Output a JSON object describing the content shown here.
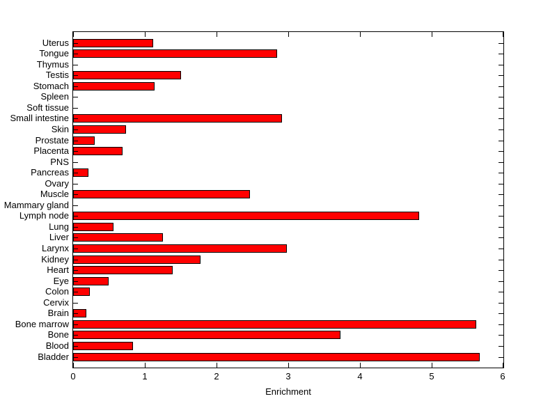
{
  "chart_data": {
    "type": "bar",
    "orientation": "horizontal",
    "title": "",
    "xlabel": "Enrichment",
    "ylabel": "",
    "xlim": [
      0,
      6
    ],
    "xticks": [
      0,
      1,
      2,
      3,
      4,
      5,
      6
    ],
    "grid": false,
    "legend": null,
    "bar_color": "#FF0000",
    "bar_edge_color": "#000000",
    "axis_color": "#000000",
    "background_color": "#FFFFFF",
    "categories": [
      "Uterus",
      "Tongue",
      "Thymus",
      "Testis",
      "Stomach",
      "Spleen",
      "Soft tissue",
      "Small intestine",
      "Skin",
      "Prostate",
      "Placenta",
      "PNS",
      "Pancreas",
      "Ovary",
      "Muscle",
      "Mammary gland",
      "Lymph node",
      "Lung",
      "Liver",
      "Larynx",
      "Kidney",
      "Heart",
      "Eye",
      "Colon",
      "Cervix",
      "Brain",
      "Bone marrow",
      "Bone",
      "Blood",
      "Bladder"
    ],
    "values": [
      1.12,
      2.84,
      0,
      1.5,
      1.14,
      0,
      0,
      2.91,
      0.74,
      0.3,
      0.69,
      0,
      0.21,
      0,
      2.47,
      0,
      4.82,
      0.56,
      1.25,
      2.98,
      1.78,
      1.39,
      0.49,
      0.23,
      0,
      0.18,
      5.62,
      3.73,
      0.83,
      5.67
    ]
  }
}
